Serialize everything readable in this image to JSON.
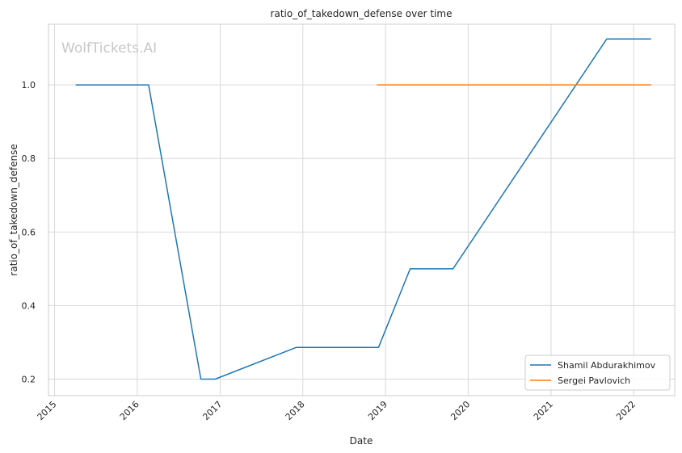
{
  "chart_data": {
    "type": "line",
    "title": "ratio_of_takedown_defense over time",
    "xlabel": "Date",
    "ylabel": "ratio_of_takedown_defense",
    "watermark": "WolfTickets.AI",
    "xlim": [
      "2014-12-05",
      "2022-07-01"
    ],
    "ylim": [
      0.155,
      1.165
    ],
    "x_ticks": [
      "2015",
      "2016",
      "2017",
      "2018",
      "2019",
      "2020",
      "2021",
      "2022"
    ],
    "y_ticks": [
      "0.2",
      "0.4",
      "0.6",
      "0.8",
      "1.0"
    ],
    "grid": true,
    "legend_position": "lower-right",
    "series": [
      {
        "name": "Shamil Abdurakhimov",
        "color": "#1f77b4",
        "points": [
          {
            "x": "2015-04-04",
            "y": 1.0
          },
          {
            "x": "2016-02-20",
            "y": 1.0
          },
          {
            "x": "2016-10-08",
            "y": 0.2
          },
          {
            "x": "2016-12-10",
            "y": 0.2
          },
          {
            "x": "2017-12-02",
            "y": 0.286
          },
          {
            "x": "2018-12-01",
            "y": 0.286
          },
          {
            "x": "2019-04-20",
            "y": 0.5
          },
          {
            "x": "2019-10-26",
            "y": 0.5
          },
          {
            "x": "2021-09-04",
            "y": 1.125
          },
          {
            "x": "2022-03-19",
            "y": 1.125
          }
        ]
      },
      {
        "name": "Sergei Pavlovich",
        "color": "#ff7f0e",
        "points": [
          {
            "x": "2018-11-24",
            "y": 1.0
          },
          {
            "x": "2022-03-19",
            "y": 1.0
          }
        ]
      }
    ]
  }
}
